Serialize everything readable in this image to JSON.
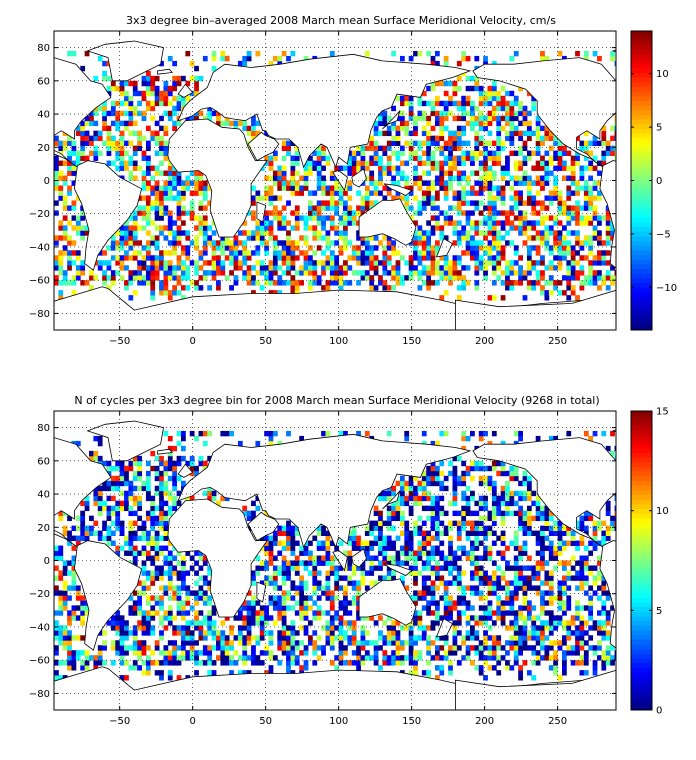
{
  "chart_data": [
    {
      "type": "heatmap",
      "title": "3x3 degree bin–averaged 2008 March mean Surface Meridional Velocity, cm/s",
      "xlabel": "",
      "ylabel": "",
      "xlim": [
        -95,
        290
      ],
      "ylim": [
        -90,
        90
      ],
      "xticks": [
        -50,
        0,
        50,
        100,
        150,
        200,
        250
      ],
      "xtick_labels": [
        "−50",
        "0",
        "50",
        "100",
        "150",
        "200",
        "250"
      ],
      "yticks": [
        80,
        60,
        40,
        20,
        0,
        -20,
        -40,
        -60,
        -80
      ],
      "ytick_labels": [
        "80",
        "60",
        "40",
        "20",
        "0",
        "−20",
        "−40",
        "−60",
        "−80"
      ],
      "grid": true,
      "bin_size_deg": 3,
      "colorbar": {
        "colormap": "jet",
        "range": [
          -14,
          14
        ],
        "ticks": [
          10,
          5,
          0,
          -5,
          -10
        ],
        "tick_labels": [
          "10",
          "5",
          "0",
          "−5",
          "−10"
        ]
      }
    },
    {
      "type": "heatmap",
      "title": "N of cycles per 3x3 degree bin for 2008 March mean Surface Meridional Velocity (9268 in total)",
      "xlabel": "",
      "ylabel": "",
      "xlim": [
        -95,
        290
      ],
      "ylim": [
        -90,
        90
      ],
      "xticks": [
        -50,
        0,
        50,
        100,
        150,
        200,
        250
      ],
      "xtick_labels": [
        "−50",
        "0",
        "50",
        "100",
        "150",
        "200",
        "250"
      ],
      "yticks": [
        80,
        60,
        40,
        20,
        0,
        -20,
        -40,
        -60,
        -80
      ],
      "ytick_labels": [
        "80",
        "60",
        "40",
        "20",
        "0",
        "−20",
        "−40",
        "−60",
        "−80"
      ],
      "grid": true,
      "bin_size_deg": 3,
      "colorbar": {
        "colormap": "jet",
        "range": [
          0,
          15
        ],
        "ticks": [
          15,
          10,
          5,
          0
        ],
        "tick_labels": [
          "15",
          "10",
          "5",
          "0"
        ]
      }
    }
  ]
}
